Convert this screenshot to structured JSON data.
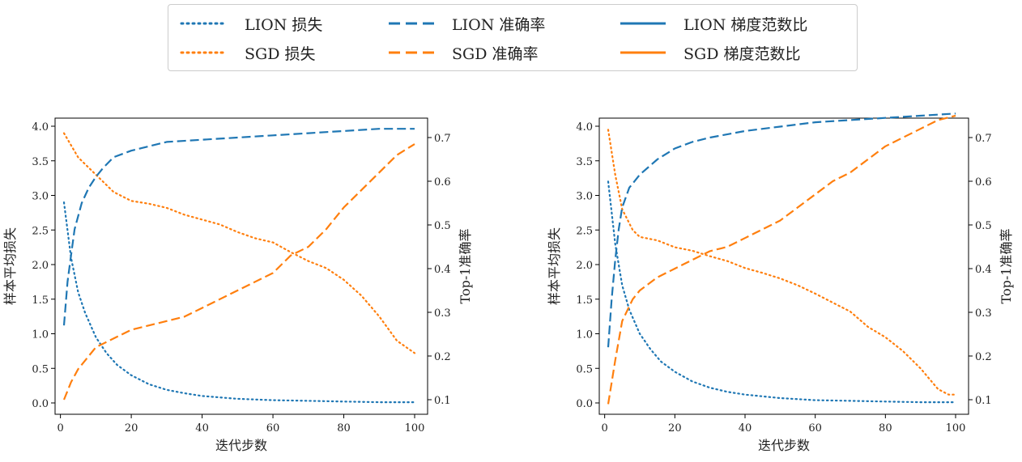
{
  "legend": {
    "items": [
      {
        "label": "LION 损失",
        "color": "#1f77b4",
        "style": "dotted"
      },
      {
        "label": "SGD 损失",
        "color": "#ff7f0e",
        "style": "dotted"
      },
      {
        "label": "LION 准确率",
        "color": "#1f77b4",
        "style": "dashed"
      },
      {
        "label": "SGD 准确率",
        "color": "#ff7f0e",
        "style": "dashed"
      },
      {
        "label": "LION 梯度范数比",
        "color": "#1f77b4",
        "style": "solid"
      },
      {
        "label": "SGD 梯度范数比",
        "color": "#ff7f0e",
        "style": "solid"
      }
    ]
  },
  "chart_data": [
    {
      "type": "line",
      "xlabel": "迭代步数",
      "ylabel": "样本平均损失",
      "y2label": "Top-1准确率",
      "xlim": [
        1,
        100
      ],
      "ylim": [
        0,
        4
      ],
      "y2lim": [
        0.1,
        0.7
      ],
      "xticks": [
        0,
        20,
        40,
        60,
        80,
        100
      ],
      "yticks": [
        "0.0",
        "0.5",
        "1.0",
        "1.5",
        "2.0",
        "2.5",
        "3.0",
        "3.5",
        "4.0"
      ],
      "y2ticks": [
        "0.1",
        "0.2",
        "0.3",
        "0.4",
        "0.5",
        "0.6",
        "0.7"
      ],
      "series": [
        {
          "name": "LION 损失",
          "axis": "left",
          "color": "#1f77b4",
          "style": "dotted",
          "x": [
            1,
            3,
            5,
            7,
            10,
            13,
            16,
            20,
            25,
            30,
            35,
            40,
            50,
            60,
            70,
            80,
            90,
            100
          ],
          "y": [
            2.9,
            2.1,
            1.6,
            1.3,
            0.95,
            0.72,
            0.55,
            0.4,
            0.27,
            0.19,
            0.14,
            0.1,
            0.06,
            0.04,
            0.03,
            0.02,
            0.01,
            0.01
          ]
        },
        {
          "name": "SGD 损失",
          "axis": "left",
          "color": "#ff7f0e",
          "style": "dotted",
          "x": [
            1,
            5,
            10,
            15,
            20,
            25,
            30,
            35,
            40,
            45,
            50,
            55,
            60,
            65,
            70,
            75,
            80,
            85,
            90,
            95,
            100
          ],
          "y": [
            3.9,
            3.55,
            3.3,
            3.05,
            2.92,
            2.88,
            2.82,
            2.72,
            2.65,
            2.58,
            2.47,
            2.38,
            2.32,
            2.18,
            2.05,
            1.95,
            1.78,
            1.55,
            1.25,
            0.9,
            0.72
          ]
        },
        {
          "name": "LION 准确率",
          "axis": "right",
          "color": "#1f77b4",
          "style": "dashed",
          "x": [
            1,
            2,
            3,
            4,
            5,
            6,
            8,
            10,
            12,
            15,
            20,
            25,
            30,
            40,
            50,
            60,
            70,
            80,
            90,
            100
          ],
          "y": [
            0.27,
            0.37,
            0.43,
            0.49,
            0.52,
            0.55,
            0.585,
            0.61,
            0.63,
            0.655,
            0.67,
            0.68,
            0.69,
            0.695,
            0.7,
            0.705,
            0.71,
            0.715,
            0.72,
            0.72
          ]
        },
        {
          "name": "SGD 准确率",
          "axis": "right",
          "color": "#ff7f0e",
          "style": "dashed",
          "x": [
            1,
            3,
            5,
            8,
            10,
            15,
            20,
            25,
            30,
            35,
            40,
            45,
            50,
            55,
            60,
            65,
            70,
            75,
            80,
            85,
            90,
            95,
            100
          ],
          "y": [
            0.1,
            0.14,
            0.17,
            0.2,
            0.22,
            0.24,
            0.26,
            0.27,
            0.28,
            0.29,
            0.31,
            0.33,
            0.35,
            0.37,
            0.39,
            0.43,
            0.45,
            0.49,
            0.54,
            0.58,
            0.62,
            0.66,
            0.685
          ]
        }
      ]
    },
    {
      "type": "line",
      "xlabel": "迭代步数",
      "ylabel": "样本平均损失",
      "y2label": "Top-1准确率",
      "xlim": [
        1,
        100
      ],
      "ylim": [
        0,
        4
      ],
      "y2lim": [
        0.1,
        0.7
      ],
      "xticks": [
        0,
        20,
        40,
        60,
        80,
        100
      ],
      "yticks": [
        "0.0",
        "0.5",
        "1.0",
        "1.5",
        "2.0",
        "2.5",
        "3.0",
        "3.5",
        "4.0"
      ],
      "y2ticks": [
        "0.1",
        "0.2",
        "0.3",
        "0.4",
        "0.5",
        "0.6",
        "0.7"
      ],
      "series": [
        {
          "name": "LION 损失",
          "axis": "left",
          "color": "#1f77b4",
          "style": "dotted",
          "x": [
            1,
            3,
            5,
            7,
            10,
            13,
            16,
            20,
            25,
            30,
            35,
            40,
            50,
            60,
            70,
            80,
            90,
            100
          ],
          "y": [
            3.2,
            2.3,
            1.7,
            1.35,
            1.0,
            0.78,
            0.6,
            0.45,
            0.31,
            0.22,
            0.16,
            0.12,
            0.07,
            0.04,
            0.03,
            0.02,
            0.01,
            0.01
          ]
        },
        {
          "name": "SGD 损失",
          "axis": "left",
          "color": "#ff7f0e",
          "style": "dotted",
          "x": [
            1,
            3,
            5,
            8,
            10,
            15,
            20,
            25,
            30,
            35,
            40,
            45,
            50,
            55,
            60,
            65,
            70,
            75,
            80,
            85,
            90,
            95,
            98,
            100
          ],
          "y": [
            3.95,
            3.3,
            2.8,
            2.5,
            2.4,
            2.35,
            2.25,
            2.2,
            2.12,
            2.05,
            1.95,
            1.88,
            1.8,
            1.7,
            1.58,
            1.45,
            1.32,
            1.1,
            0.95,
            0.75,
            0.5,
            0.2,
            0.12,
            0.12
          ]
        },
        {
          "name": "LION 准确率",
          "axis": "right",
          "color": "#1f77b4",
          "style": "dashed",
          "x": [
            1,
            2,
            3,
            4,
            5,
            7,
            10,
            15,
            20,
            25,
            30,
            40,
            50,
            60,
            70,
            80,
            90,
            100
          ],
          "y": [
            0.22,
            0.33,
            0.42,
            0.49,
            0.54,
            0.585,
            0.615,
            0.65,
            0.675,
            0.69,
            0.7,
            0.715,
            0.725,
            0.735,
            0.74,
            0.745,
            0.75,
            0.755
          ]
        },
        {
          "name": "SGD 准确率",
          "axis": "right",
          "color": "#ff7f0e",
          "style": "dashed",
          "x": [
            1,
            3,
            5,
            8,
            10,
            15,
            20,
            25,
            30,
            35,
            40,
            45,
            50,
            55,
            60,
            65,
            70,
            75,
            80,
            85,
            90,
            95,
            100
          ],
          "y": [
            0.09,
            0.19,
            0.28,
            0.33,
            0.35,
            0.38,
            0.4,
            0.42,
            0.44,
            0.45,
            0.47,
            0.49,
            0.51,
            0.54,
            0.57,
            0.6,
            0.62,
            0.65,
            0.68,
            0.7,
            0.72,
            0.74,
            0.75
          ]
        }
      ]
    }
  ]
}
